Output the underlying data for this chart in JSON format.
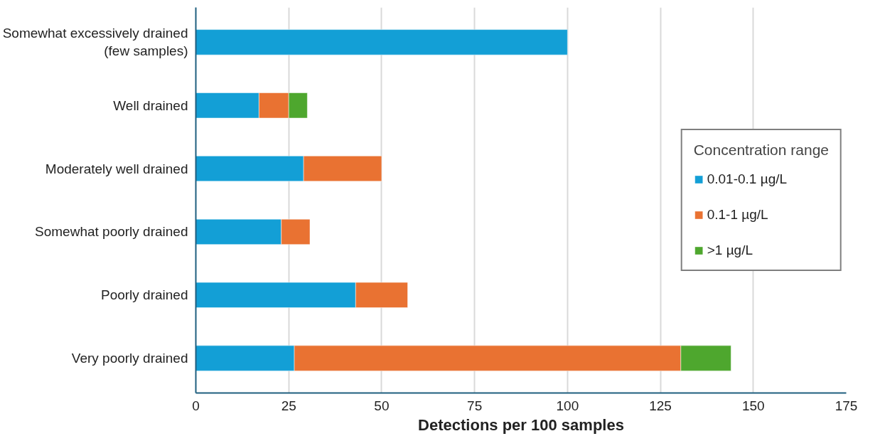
{
  "chart_data": {
    "type": "bar",
    "orientation": "horizontal",
    "stacked": true,
    "xlabel": "Detections per 100 samples",
    "legend_title": "Concentration range",
    "categories": [
      "Somewhat excessively drained\n(few samples)",
      "Well drained",
      "Moderately well drained",
      "Somewhat poorly drained",
      "Poorly drained",
      "Very poorly drained"
    ],
    "series": [
      {
        "name": "0.01-0.1 µg/L",
        "color": "#139fd6",
        "values": [
          100,
          17,
          29,
          23,
          43,
          26.5
        ]
      },
      {
        "name": "0.1-1 µg/L",
        "color": "#e97232",
        "values": [
          null,
          8,
          21,
          7.7,
          14,
          104
        ]
      },
      {
        "name": ">1 µg/L",
        "color": "#4ea72e",
        "values": [
          null,
          5,
          null,
          null,
          null,
          13.5
        ]
      }
    ],
    "xlim": [
      0,
      175
    ],
    "xticks": [
      0,
      25,
      50,
      75,
      100,
      125,
      150,
      175
    ],
    "grid": "x",
    "legend": "right"
  }
}
